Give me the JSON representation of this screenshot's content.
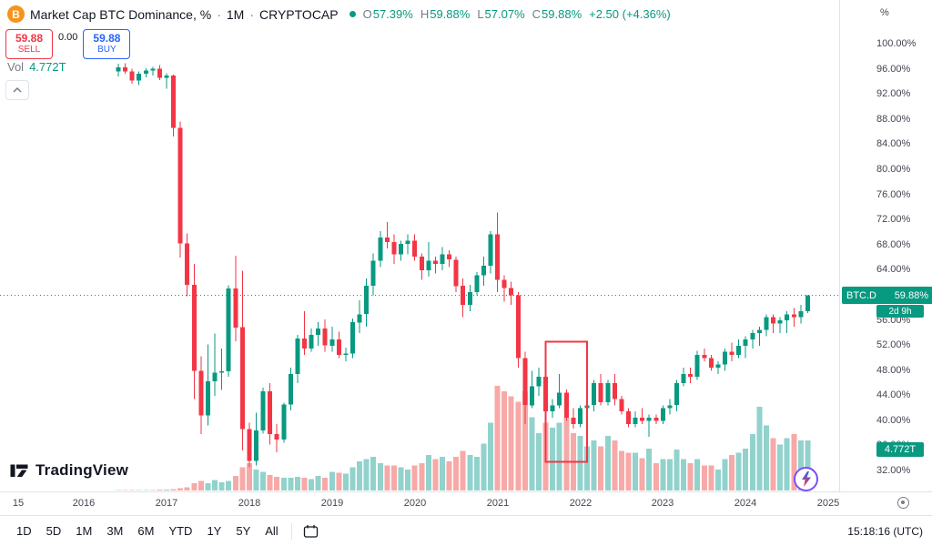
{
  "header": {
    "title": "Market Cap BTC Dominance, %",
    "separator": "·",
    "interval": "1M",
    "exchange": "CRYPTOCAP",
    "ohlc": {
      "o_label": "O",
      "o_value": "57.39%",
      "h_label": "H",
      "h_value": "59.88%",
      "l_label": "L",
      "l_value": "57.07%",
      "c_label": "C",
      "c_value": "59.88%",
      "change": "+2.50 (+4.36%)"
    }
  },
  "trade_panel": {
    "sell_price": "59.88",
    "sell_label": "SELL",
    "spread": "0.00",
    "buy_price": "59.88",
    "buy_label": "BUY"
  },
  "volume_row": {
    "label": "Vol",
    "value": "4.772T"
  },
  "price_axis": {
    "unit": "%",
    "labels": [
      {
        "text": "100.00%",
        "value": 100
      },
      {
        "text": "96.00%",
        "value": 96
      },
      {
        "text": "92.00%",
        "value": 92
      },
      {
        "text": "88.00%",
        "value": 88
      },
      {
        "text": "84.00%",
        "value": 84
      },
      {
        "text": "80.00%",
        "value": 80
      },
      {
        "text": "76.00%",
        "value": 76
      },
      {
        "text": "72.00%",
        "value": 72
      },
      {
        "text": "68.00%",
        "value": 68
      },
      {
        "text": "64.00%",
        "value": 64
      },
      {
        "text": "60.00%",
        "value": 60
      },
      {
        "text": "56.00%",
        "value": 56
      },
      {
        "text": "52.00%",
        "value": 52
      },
      {
        "text": "48.00%",
        "value": 48
      },
      {
        "text": "44.00%",
        "value": 44
      },
      {
        "text": "40.00%",
        "value": 40
      },
      {
        "text": "36.00%",
        "value": 36
      },
      {
        "text": "32.00%",
        "value": 32
      }
    ],
    "last_badge": {
      "symbol": "BTC.D",
      "price": "59.88%"
    },
    "countdown": "2d 9h",
    "volume_badge": "4.772T"
  },
  "time_axis": {
    "labels": [
      {
        "text": "15",
        "x": 20
      },
      {
        "text": "2016",
        "x": 92
      },
      {
        "text": "2017",
        "x": 183
      },
      {
        "text": "2018",
        "x": 274
      },
      {
        "text": "2019",
        "x": 365
      },
      {
        "text": "2020",
        "x": 456
      },
      {
        "text": "2021",
        "x": 547
      },
      {
        "text": "2022",
        "x": 638
      },
      {
        "text": "2023",
        "x": 728
      },
      {
        "text": "2024",
        "x": 819
      },
      {
        "text": "2025",
        "x": 910
      }
    ]
  },
  "toolbar": {
    "ranges": [
      "1D",
      "5D",
      "1M",
      "3M",
      "6M",
      "YTD",
      "1Y",
      "5Y",
      "All"
    ],
    "clock": "15:18:16 (UTC)"
  },
  "branding": {
    "logo_text": "TradingView"
  },
  "chart_data": {
    "type": "candlestick+volume",
    "symbol": "CRYPTOCAP:BTC.D",
    "title": "Market Cap BTC Dominance, %",
    "interval": "1M",
    "start_month": "2016-06",
    "price_unit": "%",
    "ylim": [
      30,
      101
    ],
    "current_price_line": 59.88,
    "colors": {
      "up": "#089981",
      "down": "#f23645",
      "vol_up": "rgba(38,166,154,0.5)",
      "vol_down": "rgba(239,83,80,0.5)",
      "accent_badge": "#089981",
      "sell": "#f23645",
      "buy": "#2962ff"
    },
    "volume_unit": "T",
    "candles": [
      [
        95.6,
        96.8,
        94.8,
        96.2,
        0.03
      ],
      [
        96.2,
        96.9,
        95.2,
        95.6,
        0.03
      ],
      [
        95.6,
        96.0,
        93.6,
        94.1,
        0.04
      ],
      [
        94.1,
        95.6,
        93.4,
        95.2,
        0.04
      ],
      [
        95.2,
        96.1,
        94.6,
        95.7,
        0.05
      ],
      [
        95.7,
        96.3,
        94.9,
        96.0,
        0.05
      ],
      [
        96.0,
        96.6,
        94.2,
        94.6,
        0.08
      ],
      [
        94.6,
        95.3,
        92.8,
        94.9,
        0.1
      ],
      [
        94.9,
        95.1,
        85.2,
        86.6,
        0.12
      ],
      [
        86.6,
        87.6,
        65.9,
        68.2,
        0.2
      ],
      [
        68.2,
        69.8,
        59.8,
        61.6,
        0.3
      ],
      [
        61.6,
        64.9,
        43.4,
        47.9,
        0.7
      ],
      [
        47.9,
        50.2,
        37.8,
        40.8,
        0.9
      ],
      [
        40.8,
        52.1,
        39.2,
        46.2,
        0.7
      ],
      [
        46.2,
        53.8,
        43.9,
        47.6,
        1.0
      ],
      [
        47.6,
        51.4,
        44.8,
        47.8,
        0.8
      ],
      [
        47.8,
        61.5,
        46.9,
        61.0,
        0.9
      ],
      [
        61.0,
        66.2,
        52.6,
        54.8,
        1.4
      ],
      [
        54.8,
        63.8,
        35.2,
        38.6,
        2.2
      ],
      [
        38.6,
        39.6,
        32.5,
        33.5,
        2.6
      ],
      [
        33.5,
        41.2,
        32.8,
        38.4,
        2.0
      ],
      [
        38.4,
        45.2,
        37.9,
        44.6,
        1.8
      ],
      [
        44.6,
        45.9,
        36.1,
        37.8,
        1.5
      ],
      [
        37.8,
        39.4,
        34.9,
        36.9,
        1.3
      ],
      [
        36.9,
        42.8,
        36.4,
        42.5,
        1.2
      ],
      [
        42.5,
        48.4,
        41.6,
        47.4,
        1.2
      ],
      [
        47.4,
        53.6,
        45.9,
        53.0,
        1.3
      ],
      [
        53.0,
        57.4,
        50.4,
        51.4,
        1.2
      ],
      [
        51.4,
        54.6,
        50.9,
        53.6,
        1.1
      ],
      [
        53.6,
        55.6,
        51.9,
        54.6,
        1.4
      ],
      [
        54.6,
        56.1,
        50.9,
        51.9,
        1.2
      ],
      [
        51.9,
        54.9,
        50.9,
        52.9,
        1.8
      ],
      [
        52.9,
        54.1,
        49.9,
        50.4,
        1.7
      ],
      [
        50.4,
        51.6,
        49.4,
        50.6,
        1.6
      ],
      [
        50.6,
        56.2,
        49.9,
        55.6,
        2.2
      ],
      [
        55.6,
        59.1,
        53.9,
        56.9,
        2.8
      ],
      [
        56.9,
        62.6,
        54.9,
        61.4,
        3.0
      ],
      [
        61.4,
        66.6,
        59.9,
        65.4,
        3.2
      ],
      [
        65.4,
        70.1,
        64.4,
        69.1,
        2.6
      ],
      [
        69.1,
        71.6,
        67.4,
        68.4,
        2.4
      ],
      [
        68.4,
        69.6,
        64.9,
        66.4,
        2.4
      ],
      [
        66.4,
        68.6,
        65.4,
        68.1,
        2.2
      ],
      [
        68.1,
        69.6,
        66.4,
        68.6,
        2.0
      ],
      [
        68.6,
        69.6,
        65.4,
        66.1,
        2.4
      ],
      [
        66.1,
        66.6,
        62.4,
        63.9,
        2.6
      ],
      [
        63.9,
        68.4,
        62.9,
        65.4,
        3.4
      ],
      [
        65.4,
        66.1,
        63.4,
        64.9,
        3.0
      ],
      [
        64.9,
        67.6,
        63.9,
        66.4,
        3.2
      ],
      [
        66.4,
        67.1,
        64.4,
        65.6,
        2.8
      ],
      [
        65.6,
        66.1,
        60.4,
        61.4,
        3.2
      ],
      [
        61.4,
        62.6,
        56.4,
        58.4,
        3.8
      ],
      [
        58.4,
        61.6,
        57.4,
        60.4,
        3.4
      ],
      [
        60.4,
        63.6,
        59.9,
        63.1,
        3.2
      ],
      [
        63.1,
        66.1,
        61.4,
        64.6,
        4.5
      ],
      [
        64.6,
        70.1,
        63.4,
        69.6,
        6.5
      ],
      [
        69.6,
        73.1,
        60.4,
        62.4,
        10.0
      ],
      [
        62.4,
        63.1,
        58.9,
        61.1,
        9.5
      ],
      [
        61.1,
        62.1,
        58.4,
        59.9,
        9.0
      ],
      [
        59.9,
        60.4,
        48.4,
        49.9,
        8.5
      ],
      [
        49.9,
        50.9,
        39.4,
        42.4,
        9.5
      ],
      [
        42.4,
        47.9,
        41.9,
        45.4,
        7.0
      ],
      [
        45.4,
        48.4,
        43.9,
        46.9,
        5.5
      ],
      [
        46.9,
        47.9,
        40.9,
        41.4,
        6.5
      ],
      [
        41.4,
        43.4,
        40.4,
        42.4,
        6.0
      ],
      [
        42.4,
        47.4,
        41.9,
        44.4,
        6.5
      ],
      [
        44.4,
        44.9,
        39.9,
        40.4,
        7.0
      ],
      [
        40.4,
        41.9,
        38.7,
        39.4,
        5.5
      ],
      [
        39.4,
        42.4,
        38.9,
        41.9,
        5.2
      ],
      [
        41.9,
        44.4,
        40.9,
        42.4,
        4.2
      ],
      [
        42.4,
        46.4,
        41.4,
        45.9,
        4.8
      ],
      [
        45.9,
        47.4,
        42.4,
        42.9,
        4.2
      ],
      [
        42.9,
        46.4,
        42.4,
        45.9,
        5.2
      ],
      [
        45.9,
        47.4,
        42.4,
        43.4,
        4.8
      ],
      [
        43.4,
        43.9,
        40.9,
        41.4,
        3.8
      ],
      [
        41.4,
        41.9,
        38.9,
        39.4,
        3.6
      ],
      [
        39.4,
        41.4,
        38.9,
        40.4,
        3.6
      ],
      [
        40.4,
        41.9,
        39.4,
        39.9,
        3.1
      ],
      [
        39.9,
        40.9,
        37.4,
        40.4,
        4.0
      ],
      [
        40.4,
        40.9,
        39.4,
        39.9,
        2.6
      ],
      [
        39.9,
        42.4,
        39.4,
        41.9,
        3.0
      ],
      [
        41.9,
        43.4,
        40.9,
        42.4,
        3.0
      ],
      [
        42.4,
        46.4,
        41.4,
        45.9,
        3.9
      ],
      [
        45.9,
        48.4,
        45.4,
        47.4,
        3.0
      ],
      [
        47.4,
        48.4,
        45.9,
        46.9,
        2.6
      ],
      [
        46.9,
        51.1,
        46.4,
        50.4,
        3.0
      ],
      [
        50.4,
        51.4,
        49.4,
        49.9,
        2.4
      ],
      [
        49.9,
        50.4,
        47.9,
        48.4,
        2.4
      ],
      [
        48.4,
        49.4,
        47.4,
        48.9,
        2.0
      ],
      [
        48.9,
        51.4,
        47.9,
        50.9,
        3.0
      ],
      [
        50.9,
        52.4,
        49.4,
        50.4,
        3.4
      ],
      [
        50.4,
        52.9,
        49.9,
        51.9,
        3.6
      ],
      [
        51.9,
        53.4,
        49.9,
        52.9,
        4.0
      ],
      [
        52.9,
        54.4,
        51.4,
        53.9,
        5.4
      ],
      [
        53.9,
        54.9,
        51.9,
        54.4,
        8.0
      ],
      [
        54.4,
        56.9,
        53.4,
        56.4,
        6.2
      ],
      [
        56.4,
        56.9,
        53.9,
        55.4,
        5.0
      ],
      [
        55.4,
        56.4,
        53.9,
        55.9,
        4.4
      ],
      [
        55.9,
        57.4,
        53.9,
        56.9,
        5.0
      ],
      [
        56.9,
        57.9,
        54.9,
        56.4,
        5.4
      ],
      [
        56.4,
        58.4,
        55.4,
        57.39,
        4.8
      ],
      [
        57.39,
        59.88,
        57.07,
        59.88,
        4.772
      ]
    ],
    "annotations": [
      {
        "type": "rect",
        "start_index": 62,
        "end_index": 68,
        "price_top": 52.5,
        "price_bottom": 33.4,
        "color": "#f23645"
      }
    ]
  }
}
